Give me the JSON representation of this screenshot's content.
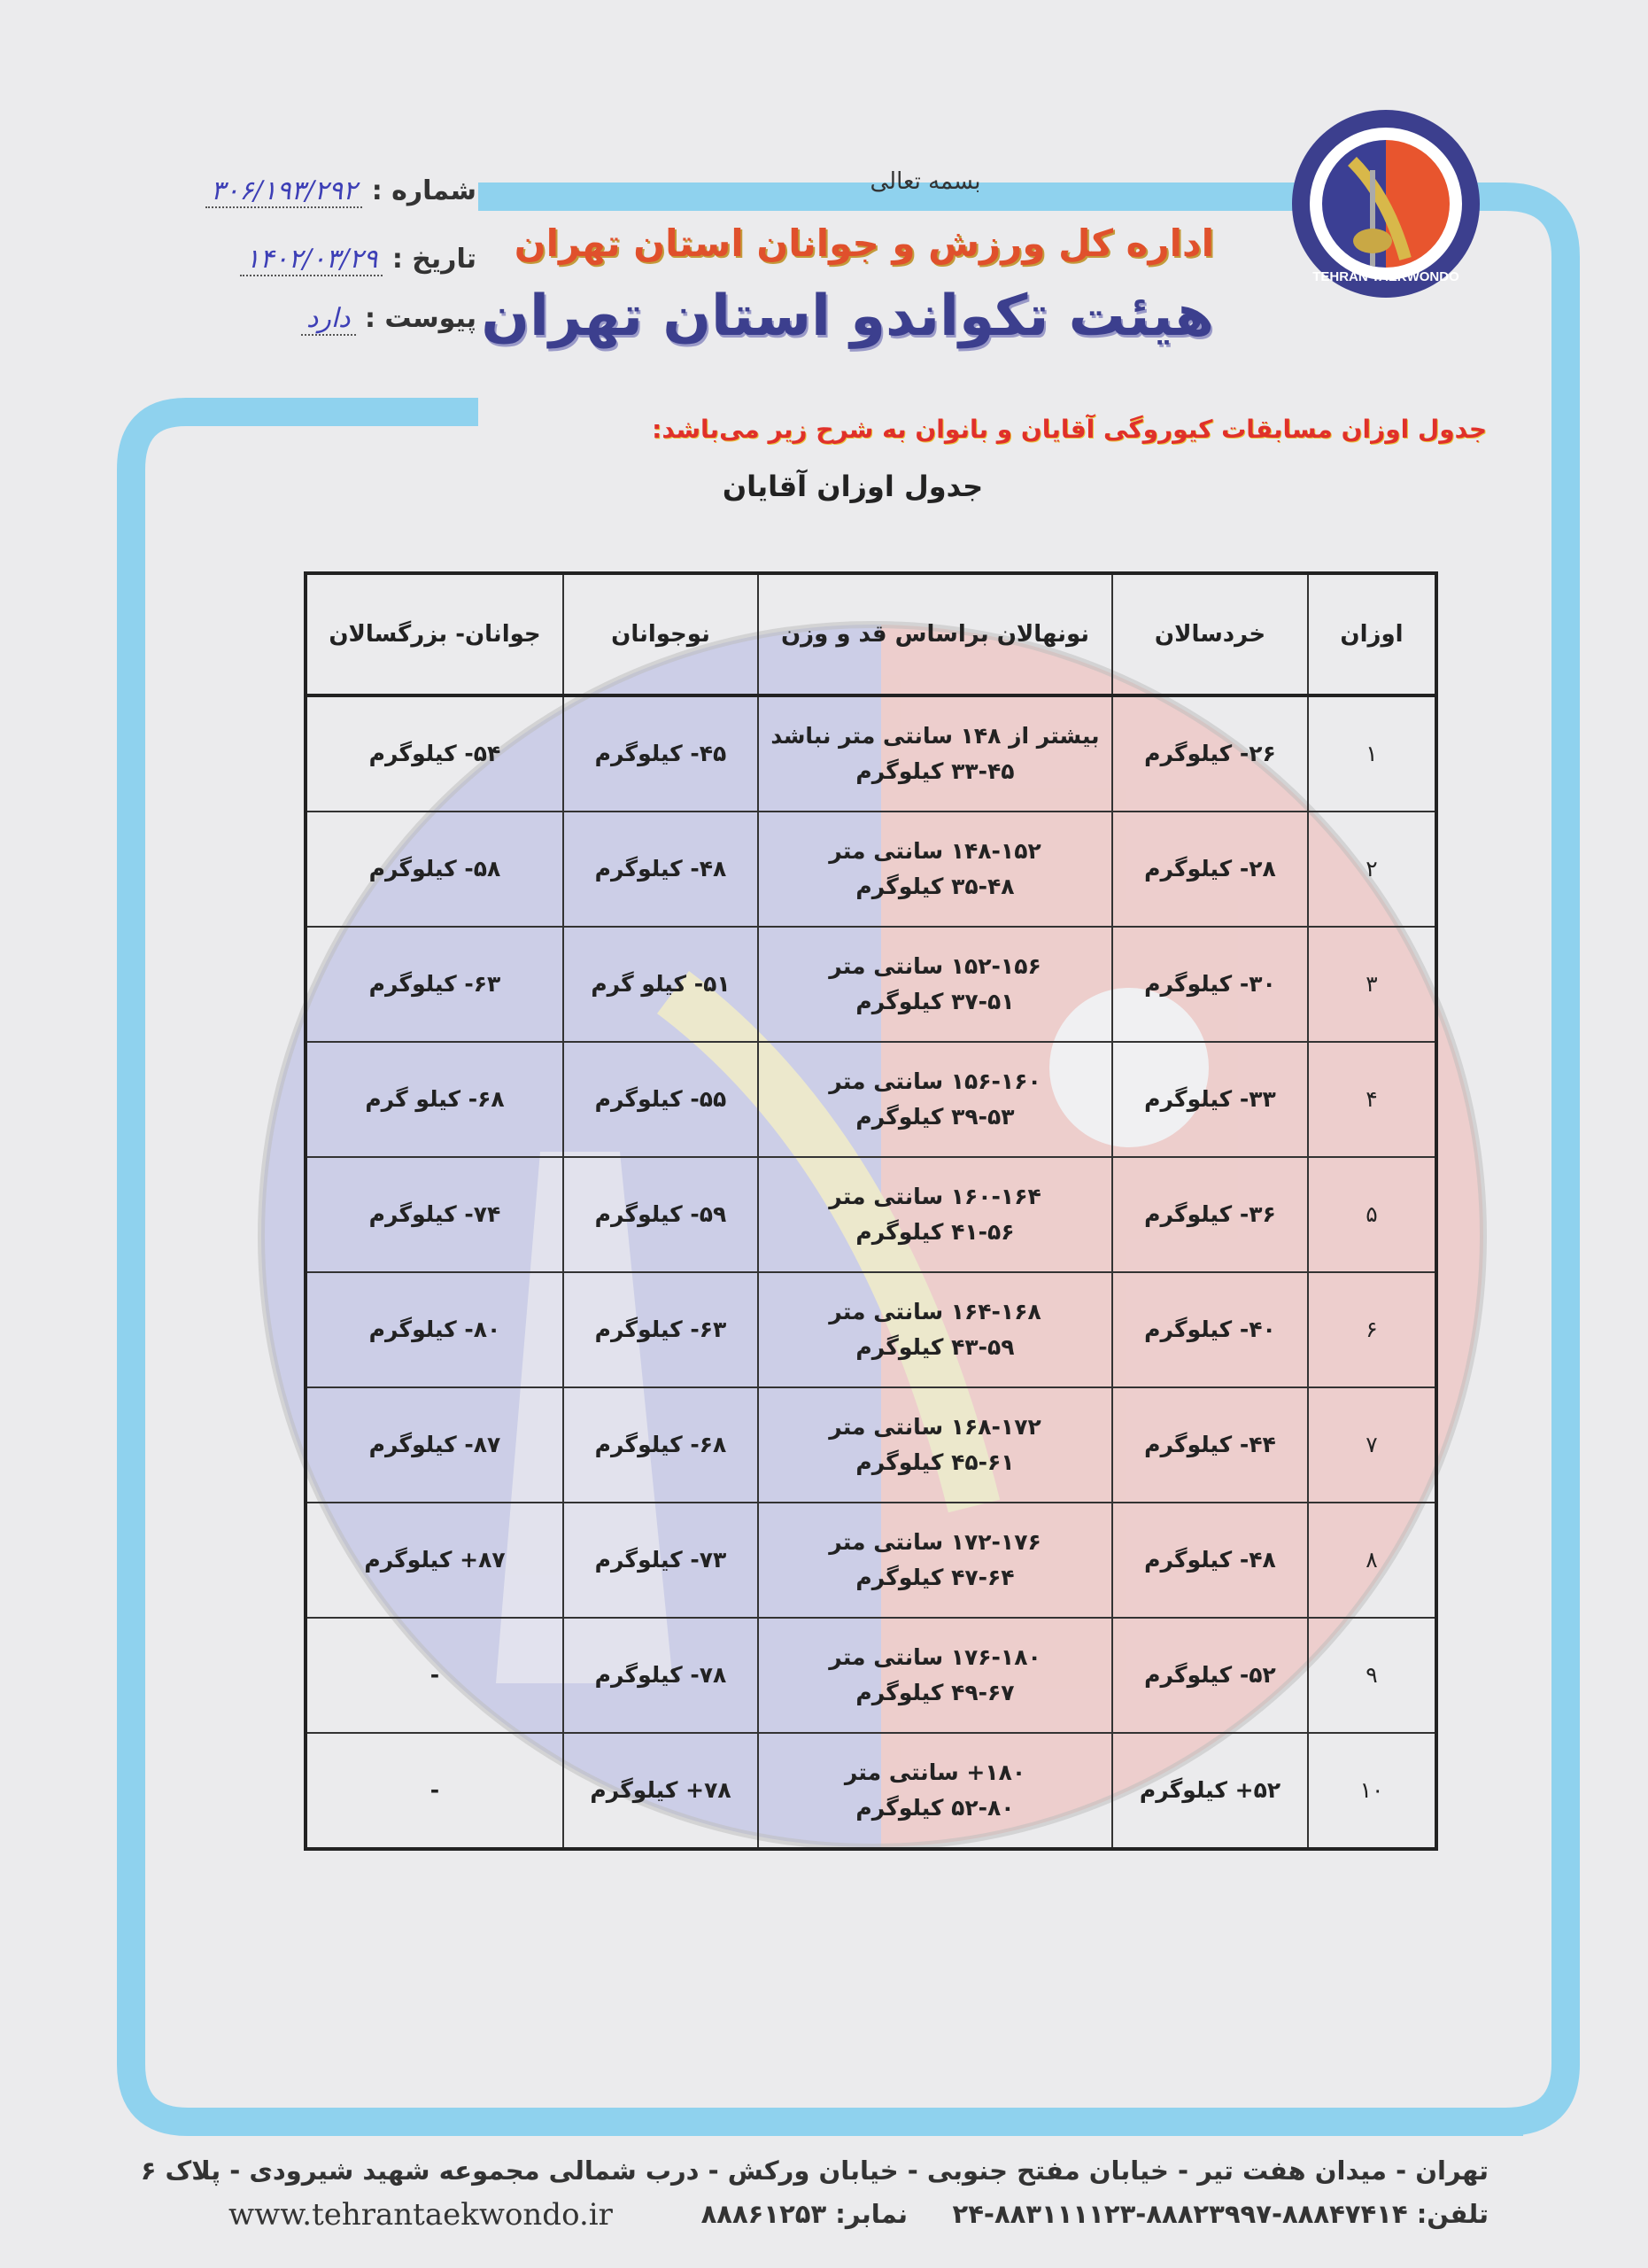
{
  "header": {
    "basmala": "بسمه تعالی",
    "organization_line1": "اداره کل ورزش و جوانان استان تهران",
    "organization_line2": "هیئت تکواندو استان تهران",
    "logo_text": "TEHRAN TAEKWONDO",
    "logo_text_fa": "هیئت تکواندو استان تهران"
  },
  "fields": {
    "number_label": "شماره :",
    "number_value": "۳۰۶/۱۹۳/۲۹۲",
    "date_label": "تاریخ :",
    "date_value": "۱۴۰۲/۰۳/۲۹",
    "attachment_label": "پیوست :",
    "attachment_value": "دارد"
  },
  "intro": "جدول اوزان مسابقات کیوروگی آقایان و بانوان به شرح زیر می‌باشد:",
  "subtitle": "جدول اوزان آقایان",
  "table": {
    "headers": [
      "اوزان",
      "خردسالان",
      "نونهالان براساس قد و وزن",
      "نوجوانان",
      "جوانان- بزرگسالان"
    ],
    "rows": [
      {
        "n": "۱",
        "kid": "۲۶- کیلوگرم",
        "junior1": "بیشتر از ۱۴۸ سانتی متر نباشد",
        "junior2": "۳۳-۴۵ کیلوگرم",
        "teen": "۴۵- کیلوگرم",
        "adult": "۵۴- کیلوگرم"
      },
      {
        "n": "۲",
        "kid": "۲۸- کیلوگرم",
        "junior1": "۱۴۸-۱۵۲ سانتی متر",
        "junior2": "۳۵-۴۸ کیلوگرم",
        "teen": "۴۸- کیلوگرم",
        "adult": "۵۸- کیلوگرم"
      },
      {
        "n": "۳",
        "kid": "۳۰- کیلوگرم",
        "junior1": "۱۵۲-۱۵۶ سانتی متر",
        "junior2": "۳۷-۵۱ کیلوگرم",
        "teen": "۵۱- کیلو گرم",
        "adult": "۶۳- کیلوگرم"
      },
      {
        "n": "۴",
        "kid": "۳۳- کیلوگرم",
        "junior1": "۱۵۶-۱۶۰ سانتی متر",
        "junior2": "۳۹-۵۳ کیلوگرم",
        "teen": "۵۵- کیلوگرم",
        "adult": "۶۸- کیلو گرم"
      },
      {
        "n": "۵",
        "kid": "۳۶- کیلوگرم",
        "junior1": "۱۶۰-۱۶۴ سانتی متر",
        "junior2": "۴۱-۵۶ کیلوگرم",
        "teen": "۵۹- کیلوگرم",
        "adult": "۷۴- کیلوگرم"
      },
      {
        "n": "۶",
        "kid": "۴۰- کیلوگرم",
        "junior1": "۱۶۴-۱۶۸ سانتی متر",
        "junior2": "۴۳-۵۹ کیلوگرم",
        "teen": "۶۳- کیلوگرم",
        "adult": "۸۰- کیلوگرم"
      },
      {
        "n": "۷",
        "kid": "۴۴- کیلوگرم",
        "junior1": "۱۶۸-۱۷۲ سانتی متر",
        "junior2": "۴۵-۶۱ کیلوگرم",
        "teen": "۶۸- کیلوگرم",
        "adult": "۸۷- کیلوگرم"
      },
      {
        "n": "۸",
        "kid": "۴۸- کیلوگرم",
        "junior1": "۱۷۲-۱۷۶ سانتی متر",
        "junior2": "۴۷-۶۴ کیلوگرم",
        "teen": "۷۳- کیلوگرم",
        "adult": "۸۷+ کیلوگرم"
      },
      {
        "n": "۹",
        "kid": "۵۲- کیلوگرم",
        "junior1": "۱۷۶-۱۸۰ سانتی متر",
        "junior2": "۴۹-۶۷ کیلوگرم",
        "teen": "۷۸- کیلوگرم",
        "adult": "-"
      },
      {
        "n": "۱۰",
        "kid": "۵۲+ کیلوگرم",
        "junior1": "۱۸۰+ سانتی متر",
        "junior2": "۵۲-۸۰ کیلوگرم",
        "teen": "۷۸+ کیلوگرم",
        "adult": "-"
      }
    ]
  },
  "footer": {
    "address": "تهران - میدان هفت تیر - خیابان مفتح جنوبی - خیابان ورکش - درب شمالی مجموعه شهید شیرودی - پلاک ۶",
    "phone_label": "تلفن:",
    "phone": "۸۸۸۴۷۴۱۴-۸۸۸۲۳۹۹۷-۸۸۳۱۱۱۱۲۳-۲۴",
    "fax_label": "نمابر:",
    "fax": "۸۸۸۶۱۲۵۳",
    "website": "www.tehrantaekwondo.ir"
  },
  "colors": {
    "frame_blue": "#8fd2ee",
    "title_red": "#e0502c",
    "title_navy": "#3c3f8e",
    "handwriting": "#3d3fb6"
  }
}
